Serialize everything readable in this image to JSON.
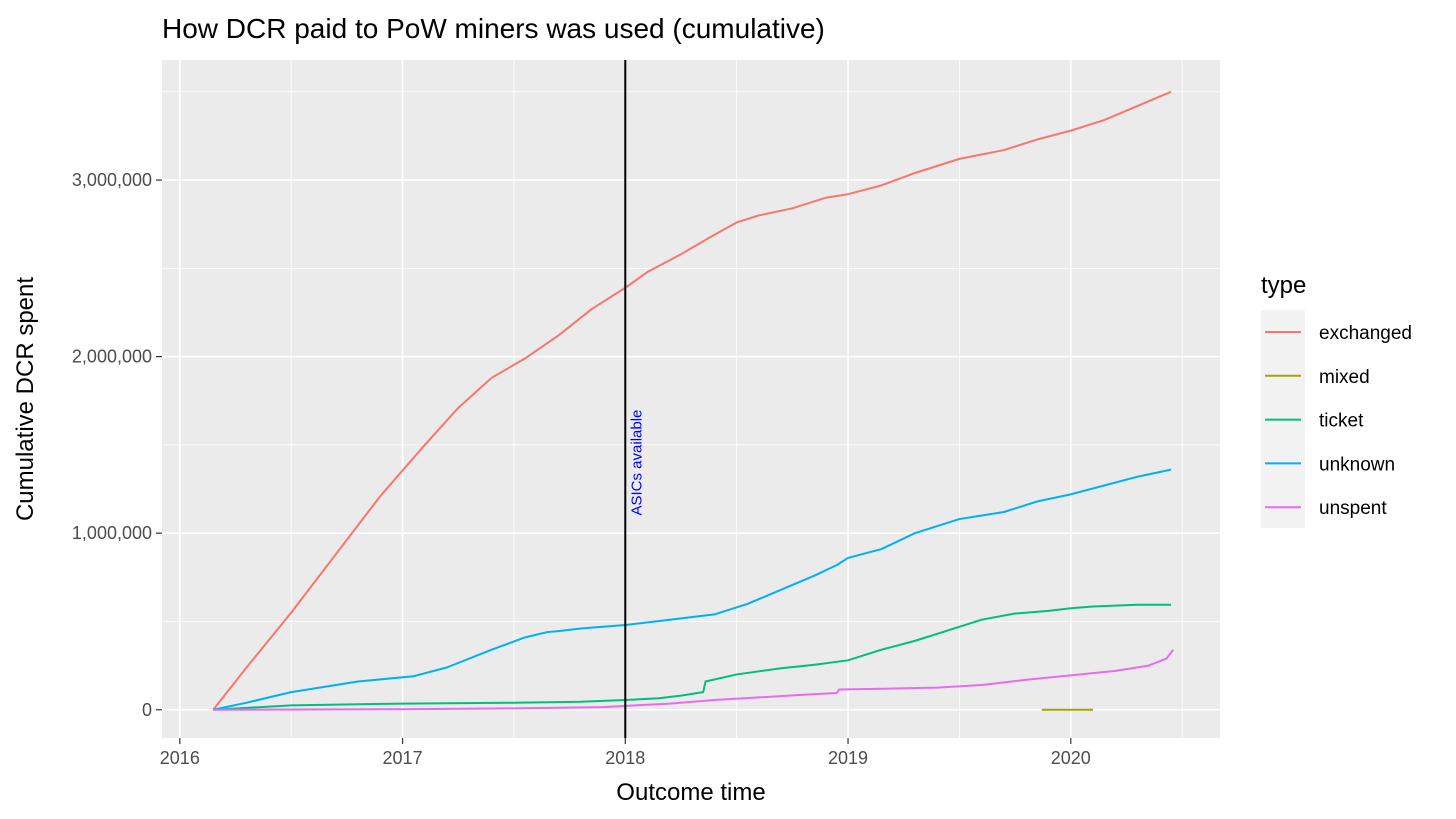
{
  "chart_data": {
    "type": "line",
    "title": "How DCR paid to PoW miners was used (cumulative)",
    "xlabel": "Outcome time",
    "ylabel": "Cumulative DCR spent",
    "xlim": [
      2015.92,
      2020.67
    ],
    "ylim": [
      -160000,
      3680000
    ],
    "x_ticks": [
      2016,
      2017,
      2018,
      2019,
      2020
    ],
    "x_tick_labels": [
      "2016",
      "2017",
      "2018",
      "2019",
      "2020"
    ],
    "y_ticks": [
      0,
      1000000,
      2000000,
      3000000
    ],
    "y_tick_labels": [
      "0",
      "1,000,000",
      "2,000,000",
      "3,000,000"
    ],
    "grid": true,
    "background": "#ebebeb",
    "legend": {
      "title": "type",
      "position": "right",
      "entries": [
        "exchanged",
        "mixed",
        "ticket",
        "unknown",
        "unspent"
      ]
    },
    "annotation": {
      "vline_x": 2018.0,
      "vline_color": "#000000",
      "text": "ASICs available",
      "text_color": "#0000ff",
      "text_y_center": 1400000
    },
    "series": [
      {
        "name": "exchanged",
        "color": "#F8766D",
        "x": [
          2016.15,
          2016.3,
          2016.5,
          2016.7,
          2016.9,
          2017.1,
          2017.25,
          2017.4,
          2017.55,
          2017.7,
          2017.85,
          2018.0,
          2018.1,
          2018.25,
          2018.4,
          2018.5,
          2018.6,
          2018.75,
          2018.9,
          2019.0,
          2019.15,
          2019.3,
          2019.5,
          2019.7,
          2019.85,
          2020.0,
          2020.15,
          2020.3,
          2020.45
        ],
        "y": [
          0,
          240000,
          550000,
          880000,
          1210000,
          1500000,
          1710000,
          1880000,
          1990000,
          2120000,
          2270000,
          2390000,
          2480000,
          2580000,
          2690000,
          2760000,
          2800000,
          2840000,
          2900000,
          2920000,
          2970000,
          3040000,
          3120000,
          3170000,
          3230000,
          3280000,
          3340000,
          3420000,
          3500000
        ]
      },
      {
        "name": "mixed",
        "color": "#A3A500",
        "x": [
          2019.87,
          2020.1
        ],
        "y": [
          0,
          0
        ]
      },
      {
        "name": "ticket",
        "color": "#00BF7D",
        "x": [
          2016.15,
          2016.5,
          2017.0,
          2017.5,
          2017.8,
          2018.0,
          2018.15,
          2018.25,
          2018.35,
          2018.36,
          2018.5,
          2018.7,
          2018.85,
          2019.0,
          2019.15,
          2019.3,
          2019.45,
          2019.6,
          2019.75,
          2019.9,
          2020.0,
          2020.1,
          2020.2,
          2020.3,
          2020.45
        ],
        "y": [
          0,
          25000,
          35000,
          40000,
          45000,
          55000,
          65000,
          80000,
          100000,
          160000,
          200000,
          235000,
          255000,
          280000,
          340000,
          390000,
          450000,
          510000,
          545000,
          560000,
          575000,
          585000,
          590000,
          595000,
          595000
        ]
      },
      {
        "name": "unknown",
        "color": "#00B0F6",
        "x": [
          2016.15,
          2016.3,
          2016.5,
          2016.8,
          2017.05,
          2017.2,
          2017.4,
          2017.55,
          2017.65,
          2017.7,
          2017.8,
          2018.0,
          2018.2,
          2018.4,
          2018.55,
          2018.7,
          2018.85,
          2018.95,
          2019.0,
          2019.15,
          2019.3,
          2019.5,
          2019.7,
          2019.85,
          2020.0,
          2020.15,
          2020.3,
          2020.45
        ],
        "y": [
          0,
          40000,
          100000,
          160000,
          190000,
          240000,
          340000,
          410000,
          440000,
          445000,
          460000,
          480000,
          510000,
          540000,
          600000,
          680000,
          760000,
          820000,
          860000,
          910000,
          1000000,
          1080000,
          1120000,
          1180000,
          1220000,
          1270000,
          1320000,
          1360000
        ]
      },
      {
        "name": "unspent",
        "color": "#E76BF3",
        "x": [
          2016.15,
          2017.0,
          2017.5,
          2017.9,
          2018.0,
          2018.2,
          2018.4,
          2018.6,
          2018.8,
          2018.95,
          2018.96,
          2019.2,
          2019.4,
          2019.6,
          2019.8,
          2020.0,
          2020.2,
          2020.35,
          2020.43,
          2020.46
        ],
        "y": [
          0,
          3000,
          8000,
          15000,
          22000,
          35000,
          55000,
          70000,
          85000,
          95000,
          115000,
          120000,
          125000,
          140000,
          170000,
          195000,
          220000,
          250000,
          290000,
          340000
        ]
      }
    ]
  }
}
